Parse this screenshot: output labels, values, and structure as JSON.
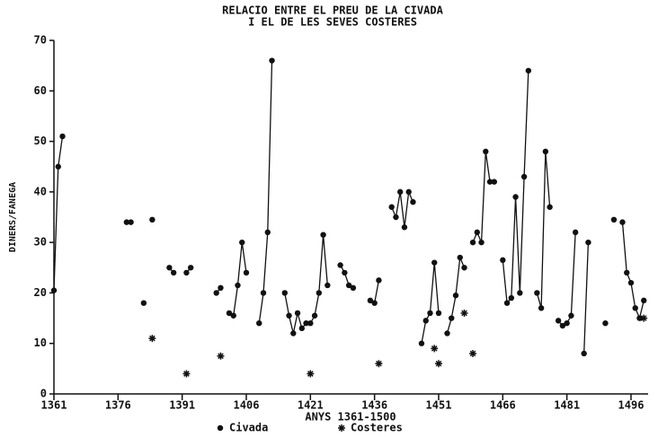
{
  "chart_data": {
    "type": "line",
    "title": "RELACIO ENTRE EL PREU DE LA CIVADA",
    "subtitle": "I EL DE LES SEVES COSTERES",
    "x_label": "ANYS 1361-1500",
    "y_label": "DINERS/FANEGA",
    "xlim": [
      1361,
      1500
    ],
    "ylim": [
      0,
      70
    ],
    "xticks": [
      1361,
      1376,
      1391,
      1406,
      1421,
      1436,
      1451,
      1466,
      1481,
      1496
    ],
    "yticks": [
      0,
      10,
      20,
      30,
      40,
      50,
      60,
      70
    ],
    "legend": "bottom",
    "series": [
      {
        "name": "Civada",
        "color": "#111111",
        "marker": "circle",
        "line": true,
        "x": [
          1361,
          1362,
          1363,
          1370,
          1378,
          1379,
          1380,
          1382,
          1383,
          1384,
          1386,
          1388,
          1389,
          1390,
          1392,
          1393,
          1396,
          1399,
          1400,
          1401,
          1402,
          1403,
          1404,
          1405,
          1406,
          1408,
          1409,
          1410,
          1411,
          1412,
          1414,
          1415,
          1416,
          1417,
          1418,
          1419,
          1420,
          1421,
          1422,
          1423,
          1424,
          1425,
          1427,
          1428,
          1429,
          1430,
          1431,
          1433,
          1435,
          1436,
          1437,
          1439,
          1440,
          1441,
          1442,
          1443,
          1444,
          1445,
          1446,
          1447,
          1448,
          1449,
          1450,
          1451,
          1452,
          1453,
          1454,
          1455,
          1456,
          1457,
          1458,
          1459,
          1460,
          1461,
          1462,
          1463,
          1464,
          1465,
          1466,
          1467,
          1468,
          1469,
          1470,
          1471,
          1472,
          1473,
          1474,
          1475,
          1476,
          1477,
          1478,
          1479,
          1480,
          1481,
          1482,
          1483,
          1484,
          1485,
          1486,
          1488,
          1490,
          1491,
          1492,
          1493,
          1494,
          1495,
          1496,
          1497,
          1498,
          1499
        ],
        "values": [
          20.5,
          45,
          51,
          null,
          34,
          34,
          null,
          18,
          null,
          34.5,
          null,
          25,
          24,
          null,
          24,
          25,
          null,
          20,
          21,
          null,
          16,
          15.5,
          21.5,
          30,
          24,
          null,
          14,
          20,
          32,
          66,
          null,
          20,
          15.5,
          12,
          16,
          13,
          14,
          14,
          15.5,
          20,
          31.5,
          21.5,
          null,
          25.5,
          24,
          21.5,
          21,
          null,
          18.5,
          18,
          22.5,
          null,
          37,
          35,
          40,
          33,
          40,
          38,
          null,
          10,
          14.5,
          16,
          26,
          16,
          null,
          12,
          15,
          19.5,
          27,
          25,
          null,
          30,
          32,
          30,
          48,
          42,
          42,
          null,
          26.5,
          18,
          19,
          39,
          20,
          43,
          64,
          null,
          20,
          17,
          48,
          37,
          null,
          14.5,
          13.5,
          14,
          15.5,
          32,
          null,
          8,
          30,
          null,
          14,
          null,
          34.5,
          null,
          34,
          24,
          22,
          17,
          15,
          18.5
        ]
      },
      {
        "name": "Costeres",
        "color": "#111111",
        "marker": "star",
        "line": false,
        "x": [
          1384,
          1392,
          1400,
          1421,
          1437,
          1450,
          1451,
          1457,
          1459,
          1499
        ],
        "values": [
          11,
          4,
          7.5,
          4,
          6,
          9,
          6,
          16,
          8,
          15
        ]
      }
    ]
  }
}
